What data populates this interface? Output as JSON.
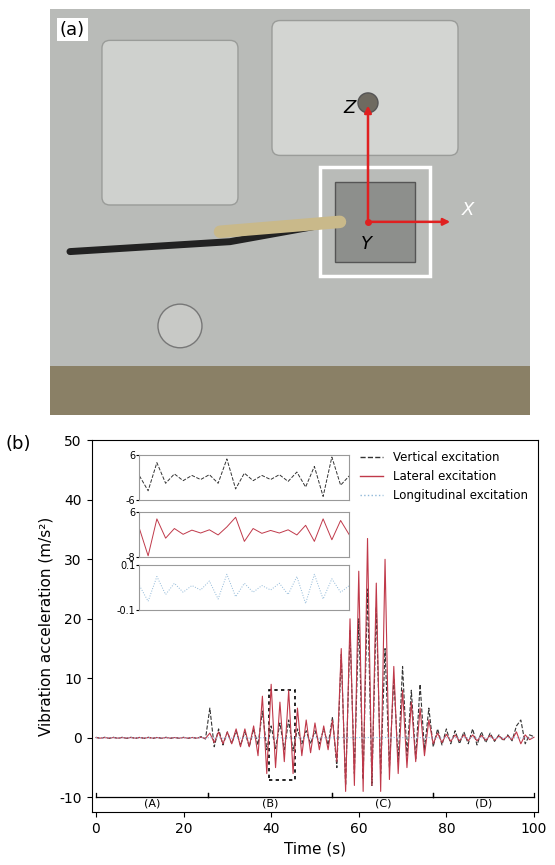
{
  "photo": {
    "label": "(a)",
    "axis_labels": [
      "Z",
      "X",
      "Y"
    ]
  },
  "chart_data": {
    "type": "line",
    "panel_label": "(b)",
    "x_label": "Time (s)",
    "y_label": "Vibration acceleration (m/s²)",
    "xlim": [
      -1,
      101
    ],
    "xticks": [
      0,
      20,
      40,
      60,
      80,
      100
    ],
    "ylim": [
      -12.5,
      50
    ],
    "yticks": [
      -10,
      0,
      10,
      20,
      30,
      40,
      50
    ],
    "legend": "upper right",
    "x": [
      0,
      1,
      2,
      3,
      4,
      5,
      6,
      7,
      8,
      9,
      10,
      11,
      12,
      13,
      14,
      15,
      16,
      17,
      18,
      19,
      20,
      21,
      22,
      23,
      24,
      25,
      26,
      27,
      28,
      29,
      30,
      31,
      32,
      33,
      34,
      35,
      36,
      37,
      38,
      39,
      40,
      41,
      42,
      43,
      44,
      45,
      46,
      47,
      48,
      49,
      50,
      51,
      52,
      53,
      54,
      55,
      56,
      57,
      58,
      59,
      60,
      61,
      62,
      63,
      64,
      65,
      66,
      67,
      68,
      69,
      70,
      71,
      72,
      73,
      74,
      75,
      76,
      77,
      78,
      79,
      80,
      81,
      82,
      83,
      84,
      85,
      86,
      87,
      88,
      89,
      90,
      91,
      92,
      93,
      94,
      95,
      96,
      97,
      98,
      99,
      100
    ],
    "series": [
      {
        "name": "Vertical excitation",
        "color": "#333333",
        "line_style": "dashed",
        "values": [
          0.1,
          -0.1,
          0.1,
          -0.1,
          0.1,
          -0.1,
          0.1,
          -0.1,
          0.1,
          -0.1,
          0.1,
          -0.1,
          0.1,
          -0.1,
          0.1,
          -0.1,
          0.1,
          -0.1,
          0.1,
          -0.1,
          0.1,
          -0.1,
          0.1,
          -0.1,
          0.2,
          -0.2,
          5.0,
          -1.5,
          1.5,
          -1.2,
          1.0,
          -1.0,
          1.2,
          -1.3,
          1.0,
          -1.5,
          1.5,
          -1.2,
          4.5,
          -2.0,
          2.0,
          -1.8,
          2.5,
          -2.0,
          3.0,
          -2.2,
          1.5,
          -1.0,
          1.2,
          -1.0,
          1.2,
          -1.0,
          1.5,
          -1.2,
          3.5,
          -5.0,
          14.0,
          -8.0,
          18.0,
          -6.0,
          20.0,
          -7.0,
          25.0,
          -8.0,
          22.0,
          -6.0,
          15.0,
          -5.0,
          10.0,
          -4.0,
          12.0,
          -3.0,
          8.0,
          -3.5,
          9.0,
          -2.0,
          5.0,
          -1.5,
          1.5,
          -1.2,
          1.5,
          -1.0,
          1.2,
          -1.0,
          1.0,
          -1.0,
          1.5,
          -1.2,
          1.0,
          -0.8,
          0.8,
          -0.6,
          0.5,
          -0.5,
          0.5,
          -0.5,
          2.0,
          3.0,
          -1.0,
          0.5,
          0.2
        ]
      },
      {
        "name": "Lateral excitation",
        "color": "#c0394a",
        "line_style": "solid",
        "values": [
          0.05,
          -0.05,
          0.05,
          -0.05,
          0.05,
          -0.05,
          0.05,
          -0.05,
          0.05,
          -0.05,
          0.05,
          -0.05,
          0.05,
          -0.05,
          0.05,
          -0.05,
          0.05,
          -0.05,
          0.05,
          -0.05,
          0.05,
          -0.05,
          0.05,
          -0.05,
          0.1,
          -0.1,
          0.8,
          -0.8,
          1.0,
          -1.0,
          1.0,
          -1.0,
          1.5,
          -1.5,
          1.5,
          -1.5,
          2.0,
          -3.0,
          7.0,
          -6.0,
          9.0,
          -5.0,
          6.0,
          -4.0,
          8.0,
          -6.0,
          5.0,
          -3.0,
          3.0,
          -2.5,
          2.5,
          -2.0,
          2.0,
          -2.0,
          3.0,
          -4.0,
          15.0,
          -9.0,
          20.0,
          -8.0,
          28.0,
          -9.0,
          33.5,
          -8.0,
          26.0,
          -9.0,
          30.0,
          -7.0,
          12.0,
          -6.0,
          8.0,
          -5.0,
          6.0,
          -4.0,
          5.0,
          -3.0,
          3.0,
          -1.0,
          0.8,
          -0.8,
          0.6,
          -0.6,
          0.5,
          -0.5,
          0.5,
          -0.5,
          0.5,
          -0.5,
          0.4,
          -0.4,
          0.4,
          -0.4,
          0.3,
          -0.3,
          0.3,
          -0.3,
          1.0,
          -1.0,
          0.5,
          -0.3,
          0.1
        ]
      },
      {
        "name": "Longitudinal excitation",
        "color": "#8fb8d8",
        "line_style": "dotted",
        "values": [
          0.02,
          -0.02,
          0.02,
          -0.02,
          0.02,
          -0.02,
          0.02,
          -0.02,
          0.02,
          -0.02,
          0.02,
          -0.02,
          0.02,
          -0.02,
          0.02,
          -0.02,
          0.02,
          -0.02,
          0.02,
          -0.02,
          0.02,
          -0.02,
          0.02,
          -0.02,
          0.02,
          -0.02,
          0.05,
          -0.05,
          0.05,
          -0.05,
          0.05,
          -0.05,
          0.05,
          -0.05,
          0.05,
          -0.05,
          0.05,
          -0.05,
          0.05,
          -0.05,
          0.05,
          -0.05,
          0.05,
          -0.05,
          0.05,
          -0.05,
          0.05,
          -0.05,
          0.05,
          -0.05,
          0.05,
          -0.05,
          0.05,
          -0.05,
          0.05,
          -0.05,
          0.08,
          -0.08,
          0.08,
          -0.08,
          0.08,
          -0.08,
          0.08,
          -0.08,
          0.08,
          -0.08,
          0.08,
          -0.08,
          0.08,
          -0.08,
          0.05,
          -0.05,
          0.05,
          -0.05,
          0.05,
          -0.05,
          0.05,
          -0.05,
          0.02,
          -0.02,
          0.02,
          -0.02,
          0.02,
          -0.02,
          0.02,
          -0.02,
          0.02,
          -0.02,
          0.02,
          -0.02,
          0.02,
          -0.02,
          0.02,
          -0.02,
          0.02,
          -0.02,
          0.02,
          -0.02,
          0.02,
          -0.02,
          0.02
        ]
      }
    ],
    "zoom_box": {
      "x": [
        39.5,
        45.5
      ],
      "y": [
        -7,
        8
      ]
    },
    "phases": [
      {
        "label": "(A)",
        "x": [
          0,
          25.5
        ],
        "y": -10
      },
      {
        "label": "(B)",
        "x": [
          25.5,
          54
        ],
        "y": -10
      },
      {
        "label": "(C)",
        "x": [
          54,
          77
        ],
        "y": -10
      },
      {
        "label": "(D)",
        "x": [
          77,
          100
        ],
        "y": -10
      }
    ],
    "insets": {
      "tick_labels": "y",
      "xlim": [
        39.5,
        45.5
      ],
      "x": [
        39.5,
        39.75,
        40.0,
        40.25,
        40.5,
        40.75,
        41.0,
        41.25,
        41.5,
        41.75,
        42.0,
        42.25,
        42.5,
        42.75,
        43.0,
        43.25,
        43.5,
        43.75,
        44.0,
        44.25,
        44.5,
        44.75,
        45.0,
        45.25,
        45.5
      ],
      "panels": [
        {
          "series": "Vertical excitation",
          "ylim": [
            -6,
            6
          ],
          "yticks": [
            -6,
            6
          ],
          "values": [
            0.5,
            -3.5,
            4.0,
            -1.5,
            1.0,
            -0.8,
            0.6,
            -0.5,
            0.8,
            -1.5,
            5.0,
            -3.0,
            1.2,
            -0.8,
            0.6,
            -0.5,
            0.8,
            -1.0,
            1.5,
            -2.5,
            3.0,
            -5.0,
            5.5,
            -2.0,
            0.5
          ]
        },
        {
          "series": "Lateral excitation",
          "ylim": [
            -8,
            6
          ],
          "yticks": [
            -8,
            6
          ],
          "values": [
            1.0,
            -7.5,
            4.0,
            -2.0,
            1.0,
            -0.8,
            0.5,
            -0.4,
            0.6,
            -1.0,
            1.5,
            4.5,
            -3.0,
            1.0,
            -0.5,
            0.4,
            -0.4,
            0.6,
            -1.0,
            2.0,
            -3.0,
            4.0,
            -2.5,
            3.5,
            -1.0
          ]
        },
        {
          "series": "Longitudinal excitation",
          "ylim": [
            -0.1,
            0.1
          ],
          "yticks": [
            -0.1,
            0.1
          ],
          "values": [
            0.01,
            -0.06,
            0.05,
            -0.03,
            0.02,
            -0.02,
            0.01,
            -0.01,
            0.03,
            -0.05,
            0.06,
            -0.04,
            0.02,
            -0.02,
            0.01,
            -0.01,
            0.02,
            -0.03,
            0.05,
            -0.07,
            0.06,
            -0.05,
            0.04,
            -0.02,
            0.01
          ]
        }
      ]
    }
  }
}
